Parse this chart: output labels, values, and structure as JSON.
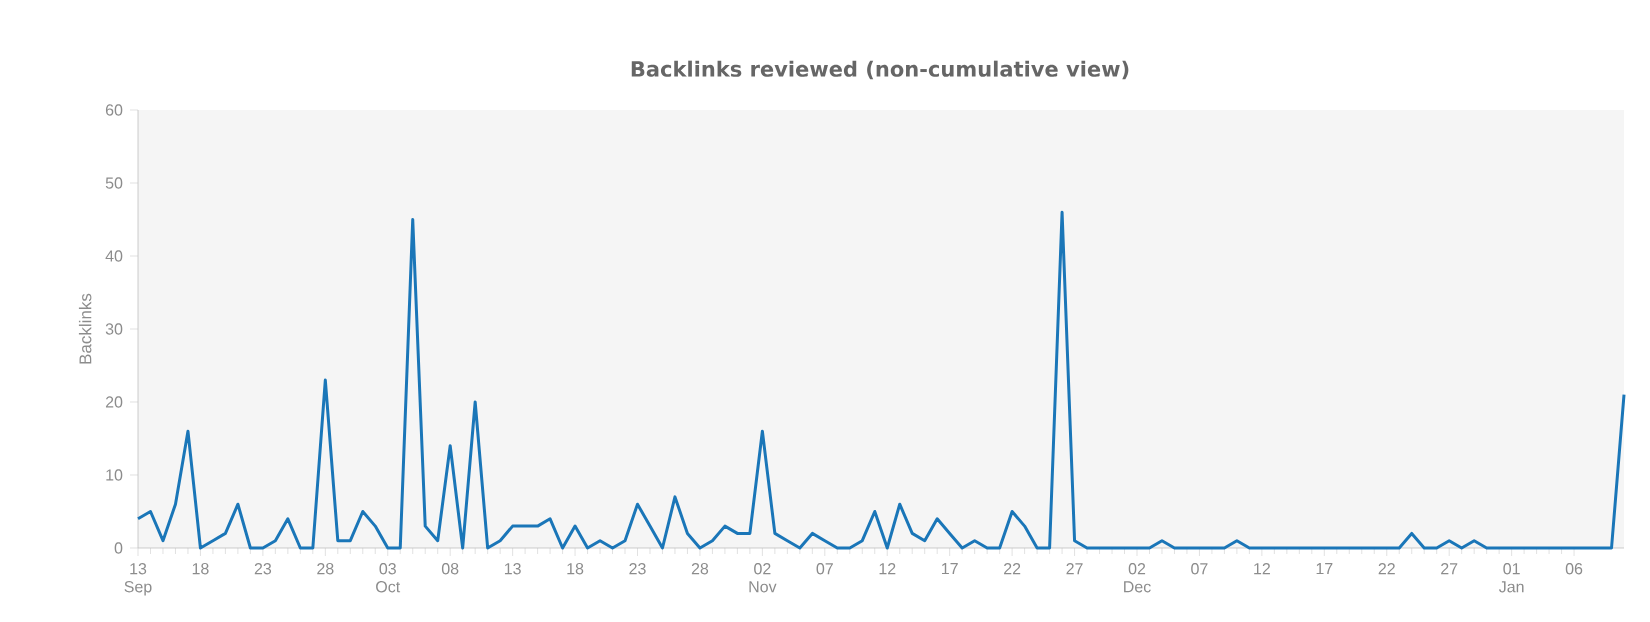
{
  "chart_data": {
    "type": "line",
    "title": "Backlinks reviewed (non-cumulative view)",
    "ylabel": "Backlinks",
    "categories": [
      "13 Sep",
      null,
      null,
      null,
      null,
      "18",
      null,
      null,
      null,
      null,
      "23",
      null,
      null,
      null,
      null,
      "28",
      null,
      null,
      null,
      null,
      "03 Oct",
      null,
      null,
      null,
      null,
      "08",
      null,
      null,
      null,
      null,
      "13",
      null,
      null,
      null,
      null,
      "18",
      null,
      null,
      null,
      null,
      "23",
      null,
      null,
      null,
      null,
      "28",
      null,
      null,
      null,
      null,
      "02 Nov",
      null,
      null,
      null,
      null,
      "07",
      null,
      null,
      null,
      null,
      "12",
      null,
      null,
      null,
      null,
      "17",
      null,
      null,
      null,
      null,
      "22",
      null,
      null,
      null,
      null,
      "27",
      null,
      null,
      null,
      null,
      "02 Dec",
      null,
      null,
      null,
      null,
      "07",
      null,
      null,
      null,
      null,
      "12",
      null,
      null,
      null,
      null,
      "17",
      null,
      null,
      null,
      null,
      "22",
      null,
      null,
      null,
      null,
      "27",
      null,
      null,
      null,
      null,
      "01 Jan",
      null,
      null,
      null,
      null,
      "06",
      null,
      null,
      null,
      null
    ],
    "series": [
      {
        "color": "#1a76b8",
        "values": [
          4,
          5,
          1,
          6,
          16,
          0,
          1,
          2,
          6,
          0,
          0,
          1,
          4,
          0,
          0,
          23,
          1,
          1,
          5,
          3,
          0,
          0,
          45,
          3,
          1,
          14,
          0,
          20,
          0,
          1,
          3,
          3,
          3,
          4,
          0,
          3,
          0,
          1,
          0,
          1,
          6,
          3,
          0,
          7,
          2,
          0,
          1,
          3,
          2,
          2,
          16,
          2,
          1,
          0,
          2,
          1,
          0,
          0,
          1,
          5,
          0,
          6,
          2,
          1,
          4,
          2,
          0,
          1,
          0,
          0,
          5,
          3,
          0,
          0,
          46,
          1,
          0,
          0,
          0,
          0,
          0,
          0,
          1,
          0,
          0,
          0,
          0,
          0,
          1,
          0,
          0,
          0,
          0,
          0,
          0,
          0,
          0,
          0,
          0,
          0,
          0,
          0,
          2,
          0,
          0,
          1,
          0,
          1,
          0,
          0,
          0,
          0,
          0,
          0,
          0,
          0,
          0,
          0,
          0,
          21
        ]
      }
    ],
    "ylim": [
      0,
      60
    ],
    "yticks": [
      0,
      10,
      20,
      30,
      40,
      50,
      60
    ],
    "marker": "none",
    "line_style": "solid"
  }
}
